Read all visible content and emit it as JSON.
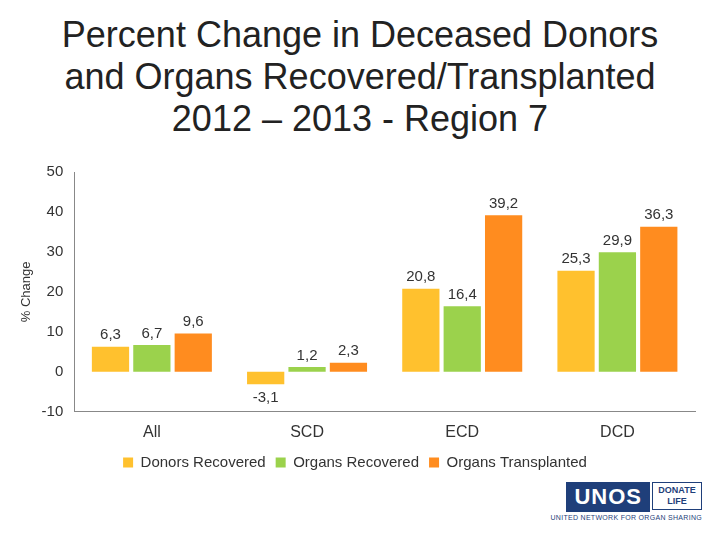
{
  "chart_data": {
    "type": "bar",
    "title": "Percent Change in Deceased Donors and Organs Recovered/Transplanted 2012 – 2013 - Region 7",
    "y_label": "% Change",
    "categories": [
      "All",
      "SCD",
      "ECD",
      "DCD"
    ],
    "series": [
      {
        "name": "Donors Recovered",
        "color": "#FFC12E",
        "values": [
          6.3,
          -3.1,
          20.8,
          25.3
        ],
        "value_labels": [
          "6,3",
          "-3,1",
          "20,8",
          "25,3"
        ]
      },
      {
        "name": "Organs Recovered",
        "color": "#9BD24C",
        "values": [
          6.7,
          1.2,
          16.4,
          29.9
        ],
        "value_labels": [
          "6,7",
          "1,2",
          "16,4",
          "29,9"
        ]
      },
      {
        "name": "Organs Transplanted",
        "color": "#FF8C1F",
        "values": [
          9.6,
          2.3,
          39.2,
          36.3
        ],
        "value_labels": [
          "9,6",
          "2,3",
          "39,2",
          "36,3"
        ]
      }
    ],
    "ylim": [
      -10,
      50
    ],
    "yticks": [
      -10,
      0,
      10,
      20,
      30,
      40,
      50
    ],
    "grid": false,
    "legend": "bottom",
    "data_labels": true,
    "annotations": [
      "UNOS",
      "DONATE LIFE",
      "UNITED NETWORK FOR ORGAN SHARING"
    ]
  }
}
